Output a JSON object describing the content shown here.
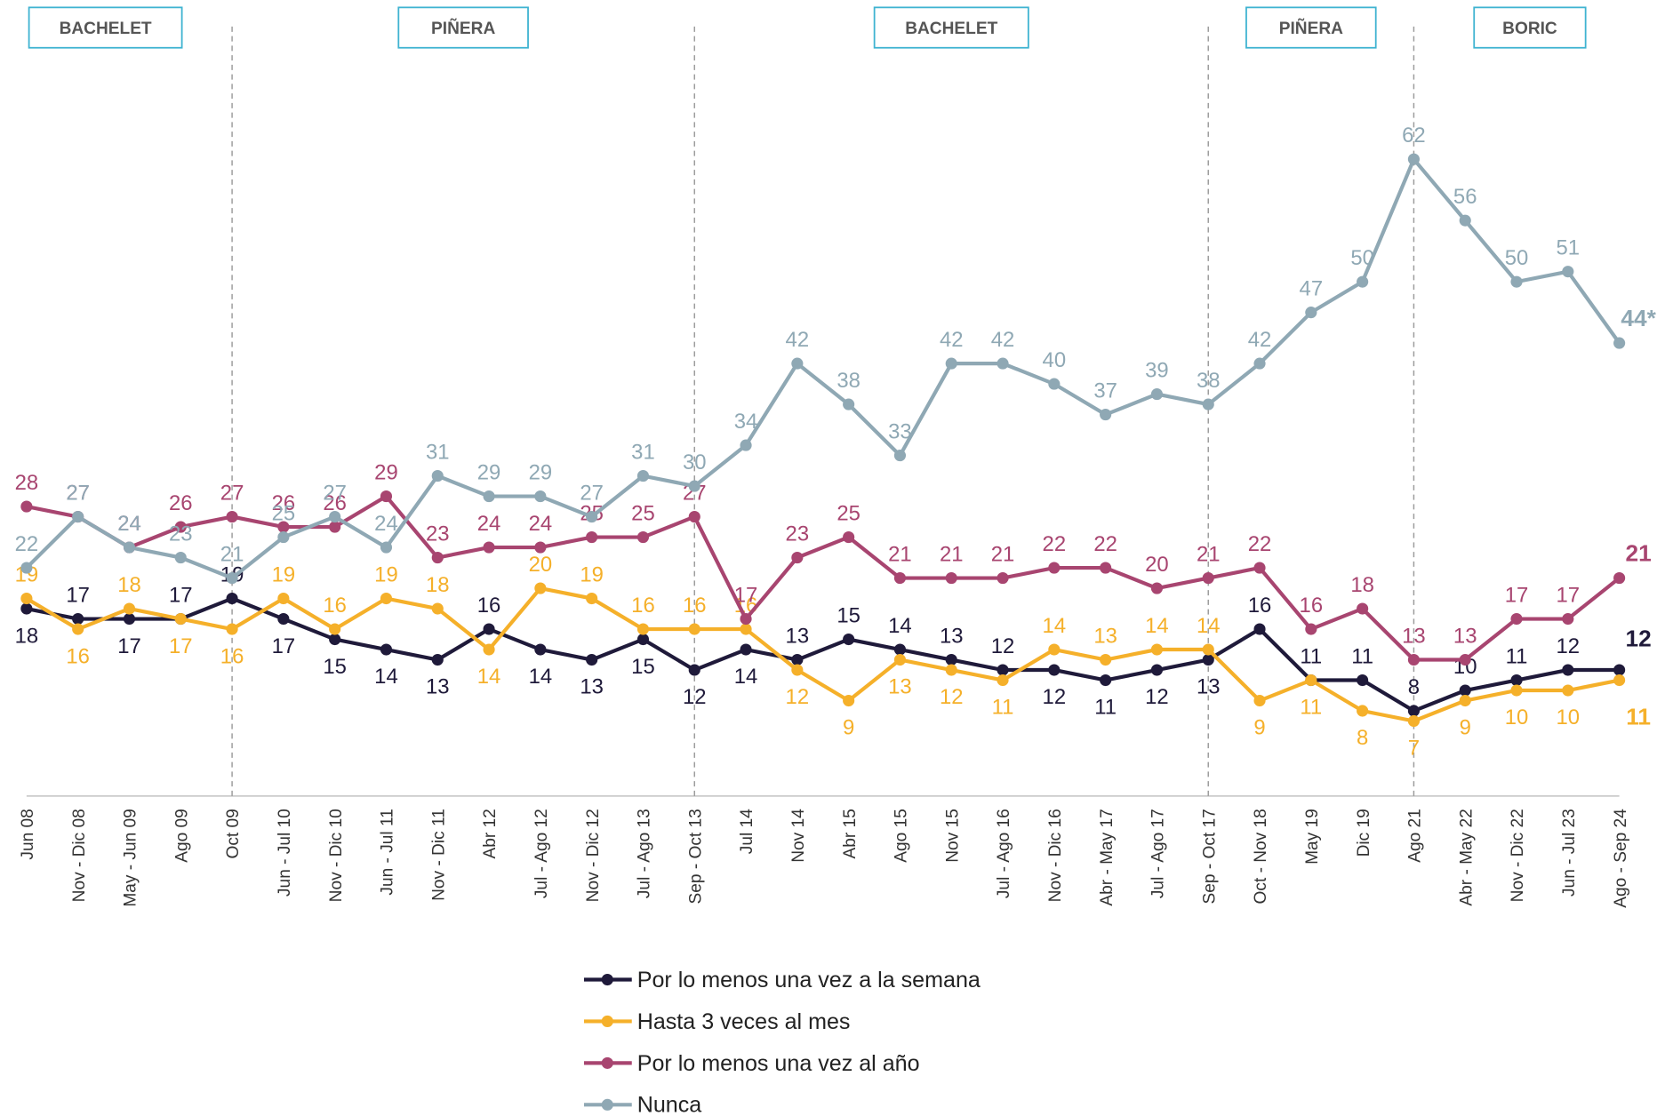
{
  "chart_data": {
    "type": "line",
    "periods": [
      "BACHELET",
      "PIÑERA",
      "BACHELET",
      "PIÑERA",
      "BORIC"
    ],
    "categories": [
      "Jun 08",
      "Nov - Dic 08",
      "May - Jun 09",
      "Ago 09",
      "Oct 09",
      "Jun - Jul 10",
      "Nov - Dic 10",
      "Jun - Jul 11",
      "Nov - Dic 11",
      "Abr 12",
      "Jul - Ago 12",
      "Nov - Dic 12",
      "Jul - Ago 13",
      "Sep - Oct 13",
      "Jul 14",
      "Nov 14",
      "Abr 15",
      "Ago 15",
      "Nov 15",
      "Jul - Ago 16",
      "Nov - Dic 16",
      "Abr - May 17",
      "Jul - Ago 17",
      "Sep - Oct 17",
      "Oct - Nov 18",
      "May 19",
      "Dic 19",
      "Ago 21",
      "Abr - May 22",
      "Nov - Dic 22",
      "Jun - Jul 23",
      "Ago - Sep 24"
    ],
    "series": [
      {
        "name": "Por lo menos una vez a la semana",
        "color": "#1f1a3a",
        "values": [
          18,
          17,
          17,
          17,
          19,
          17,
          15,
          14,
          13,
          16,
          14,
          13,
          15,
          12,
          14,
          13,
          15,
          14,
          13,
          12,
          12,
          11,
          12,
          13,
          16,
          11,
          11,
          8,
          10,
          11,
          12,
          12
        ]
      },
      {
        "name": "Hasta 3 veces al mes",
        "color": "#f5b02a",
        "values": [
          19,
          16,
          18,
          17,
          16,
          19,
          16,
          19,
          18,
          14,
          20,
          19,
          16,
          16,
          16,
          12,
          9,
          13,
          12,
          11,
          14,
          13,
          14,
          14,
          9,
          11,
          8,
          7,
          9,
          10,
          10,
          11
        ]
      },
      {
        "name": "Por lo menos una vez al año",
        "color": "#a84570",
        "values": [
          28,
          27,
          24,
          26,
          27,
          26,
          26,
          29,
          23,
          24,
          24,
          25,
          25,
          27,
          17,
          23,
          25,
          21,
          21,
          21,
          22,
          22,
          20,
          21,
          22,
          16,
          18,
          13,
          13,
          17,
          17,
          21
        ]
      },
      {
        "name": "Nunca",
        "color": "#8fa8b4",
        "values": [
          22,
          27,
          24,
          23,
          21,
          25,
          27,
          24,
          31,
          29,
          29,
          27,
          31,
          30,
          34,
          42,
          38,
          33,
          42,
          42,
          40,
          37,
          39,
          38,
          42,
          47,
          50,
          62,
          56,
          50,
          51,
          44
        ],
        "value_labels": [
          "22",
          "27",
          "24",
          "23",
          "21",
          "25",
          "27",
          "24",
          "31",
          "29",
          "29",
          "27",
          "31",
          "30",
          "34",
          "42",
          "38",
          "33",
          "42",
          "42",
          "40",
          "37",
          "39",
          "38",
          "42",
          "47",
          "50",
          "62",
          "56",
          "50",
          "51",
          "44*"
        ]
      }
    ],
    "ylim": [
      0,
      70
    ]
  }
}
